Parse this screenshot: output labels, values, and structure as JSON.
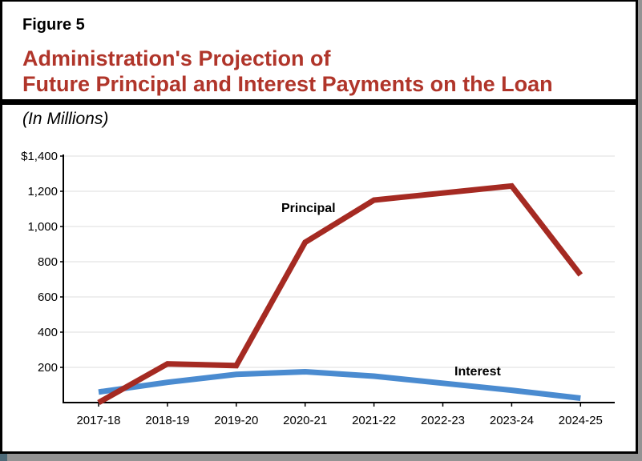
{
  "figure": {
    "label": "Figure 5",
    "title_line1": "Administration's Projection of",
    "title_line2": "Future Principal and Interest Payments on the Loan",
    "subtitle": "(In Millions)"
  },
  "colors": {
    "title": "#b0352a",
    "principal": "#a52a22",
    "interest": "#4a8bd0",
    "grid": "#dddddd"
  },
  "chart_data": {
    "type": "line",
    "title": "Administration's Projection of Future Principal and Interest Payments on the Loan",
    "subtitle": "(In Millions)",
    "xlabel": "",
    "ylabel": "",
    "categories": [
      "2017-18",
      "2018-19",
      "2019-20",
      "2020-21",
      "2021-22",
      "2022-23",
      "2023-24",
      "2024-25"
    ],
    "series": [
      {
        "name": "Principal",
        "color": "#a52a22",
        "values": [
          0,
          220,
          210,
          910,
          1150,
          1190,
          1230,
          725
        ]
      },
      {
        "name": "Interest",
        "color": "#4a8bd0",
        "values": [
          60,
          115,
          160,
          175,
          150,
          110,
          70,
          25
        ]
      }
    ],
    "ylim": [
      0,
      1400
    ],
    "yticks": [
      200,
      400,
      600,
      800,
      1000,
      1200,
      1400
    ],
    "ytick_labels": [
      "200",
      "400",
      "600",
      "800",
      "1,000",
      "1,200",
      "$1,400"
    ],
    "grid": true,
    "legend": "inline labels",
    "annotations": [
      {
        "text": "Principal",
        "near": "2019-20/2020-21",
        "approx_value": 1110
      },
      {
        "text": "Interest",
        "near": "2022-23",
        "approx_value": 180
      }
    ]
  }
}
